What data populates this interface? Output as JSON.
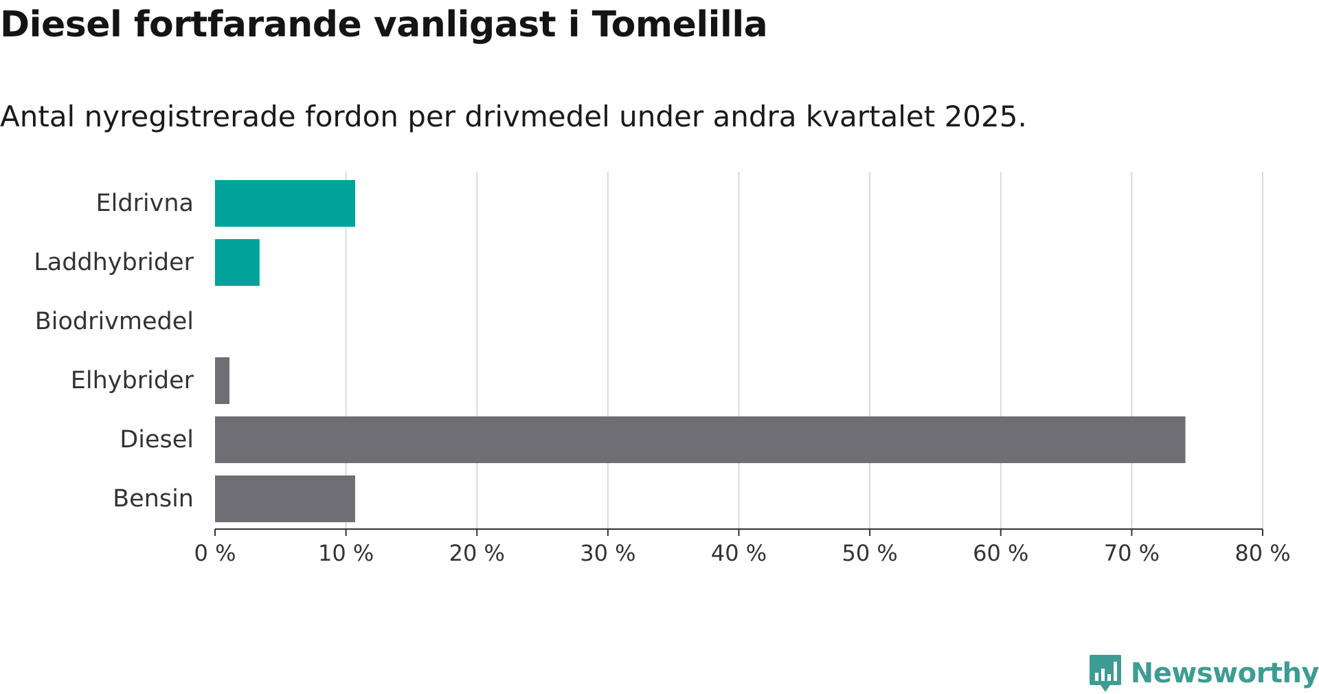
{
  "chart_data": {
    "type": "bar",
    "orientation": "horizontal",
    "title": "Diesel fortfarande vanligast i Tomelilla",
    "subtitle": "Antal nyregistrerade fordon per drivmedel under andra kvartalet 2025.",
    "categories": [
      "Eldrivna",
      "Laddhybrider",
      "Biodrivmedel",
      "Elhybrider",
      "Diesel",
      "Bensin"
    ],
    "values": [
      10.7,
      3.4,
      0,
      1.1,
      74.1,
      10.7
    ],
    "bar_colors": [
      "#00a39a",
      "#00a39a",
      "#00a39a",
      "#6e6e74",
      "#6e6e74",
      "#6e6e74"
    ],
    "xlim": [
      0,
      80
    ],
    "x_ticks": [
      0,
      10,
      20,
      30,
      40,
      50,
      60,
      70,
      80
    ],
    "x_tick_labels": [
      "0 %",
      "10 %",
      "20 %",
      "30 %",
      "40 %",
      "50 %",
      "60 %",
      "70 %",
      "80 %"
    ],
    "grid": "vertical"
  },
  "brand": {
    "name": "Newsworthy",
    "icon": "newsworthy-logo-icon",
    "color": "#3d9c94"
  }
}
